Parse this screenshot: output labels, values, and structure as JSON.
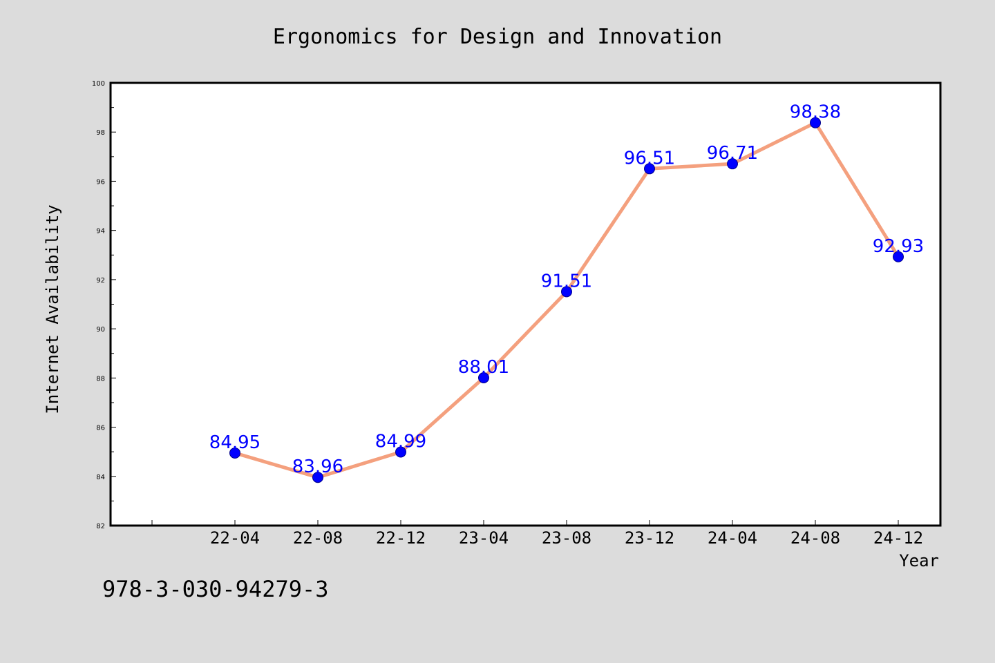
{
  "chart_data": {
    "type": "line",
    "title": "Ergonomics for Design and Innovation",
    "xlabel": "Year",
    "ylabel": "Internet Availability",
    "categories": [
      "22-04",
      "22-08",
      "22-12",
      "23-04",
      "23-08",
      "23-12",
      "24-04",
      "24-08",
      "24-12"
    ],
    "series": [
      {
        "values": [
          84.95,
          83.96,
          84.99,
          88.01,
          91.51,
          96.51,
          96.71,
          98.38,
          92.93
        ]
      }
    ],
    "data_labels": [
      "84.95",
      "83.96",
      "84.99",
      "88.01",
      "91.51",
      "96.51",
      "96.71",
      "98.38",
      "92.93"
    ],
    "ylim": [
      82,
      100
    ],
    "yticks": [
      82,
      84,
      86,
      88,
      90,
      92,
      94,
      96,
      98,
      100
    ],
    "grid": false,
    "line_color": "#f4a07e",
    "marker_color": "#0000ff",
    "label_color": "#0000ff"
  },
  "footer_text": "978-3-030-94279-3"
}
